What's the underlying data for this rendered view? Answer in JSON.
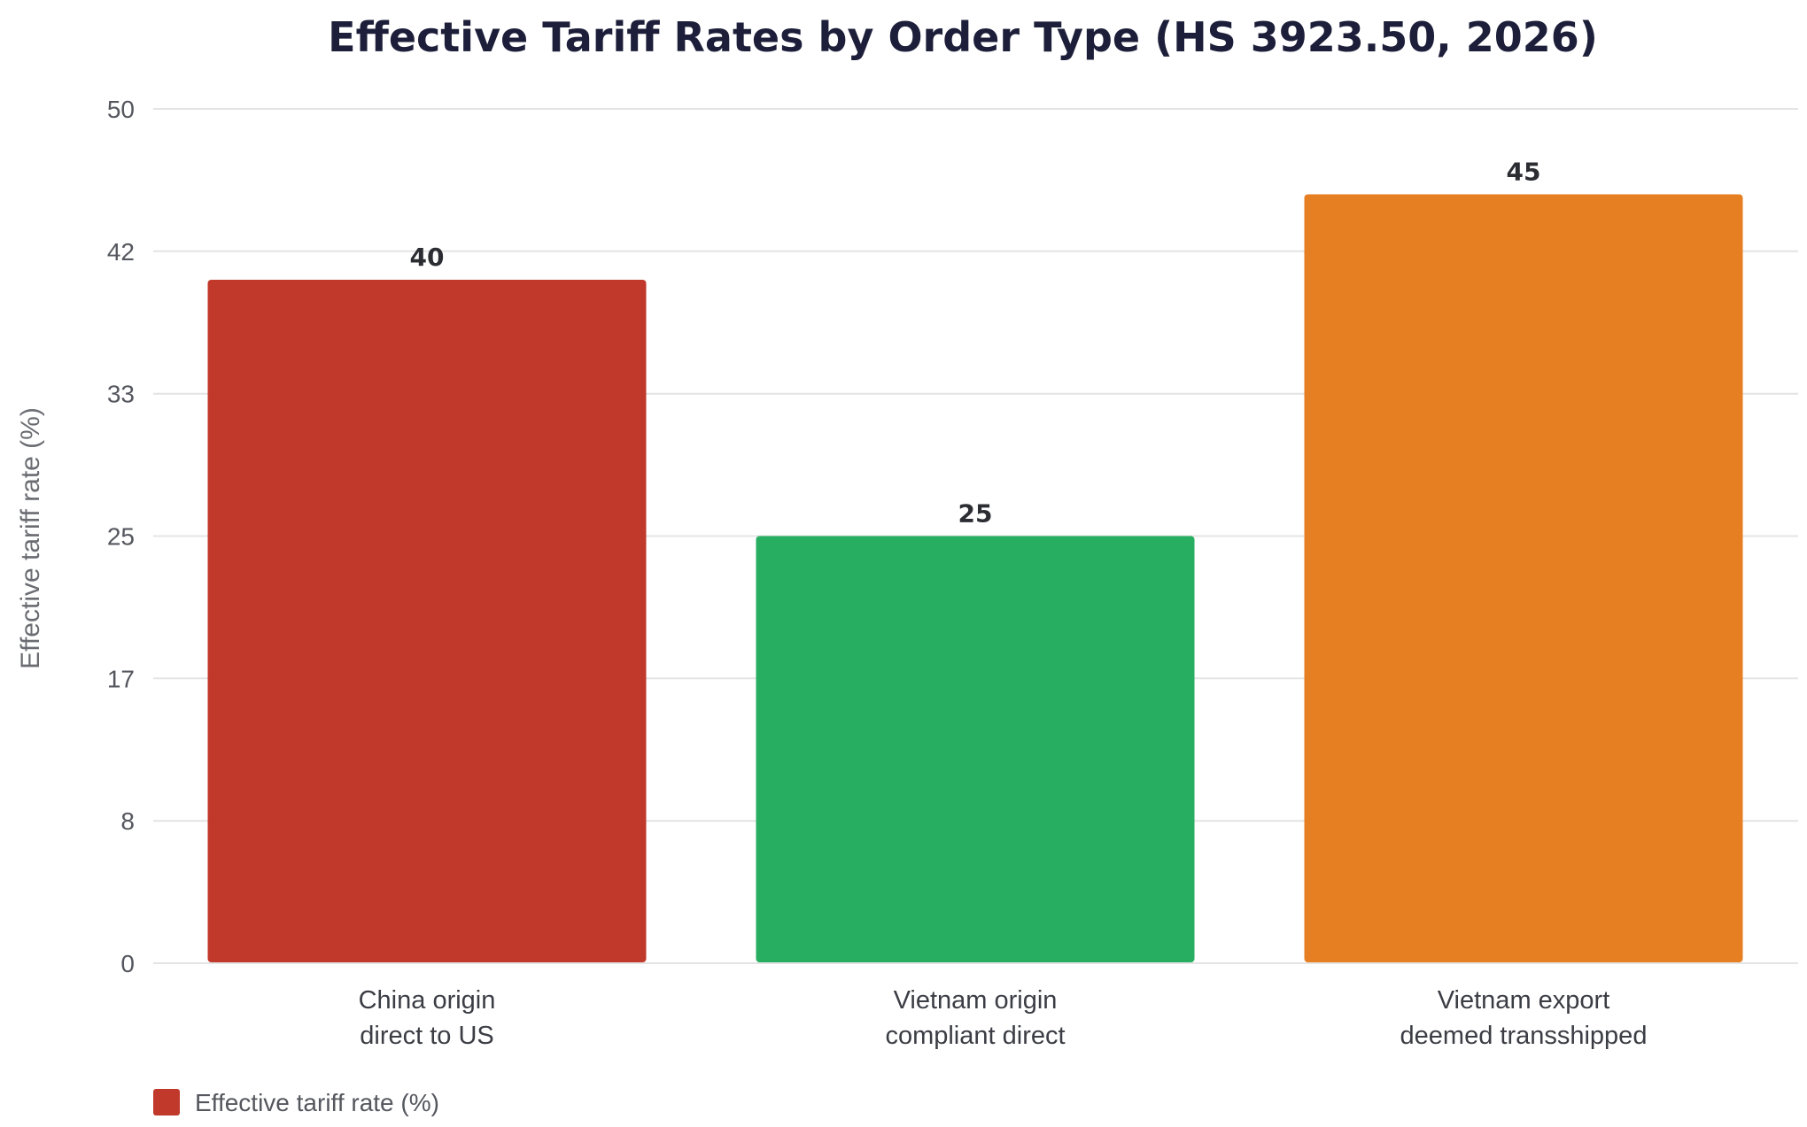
{
  "chart_data": {
    "type": "bar",
    "title": "Effective Tariff Rates by Order Type (HS 3923.50, 2026)",
    "xlabel": "",
    "ylabel": "Effective tariff rate (%)",
    "ylim": [
      0,
      50
    ],
    "yticks": [
      "0",
      "8",
      "17",
      "25",
      "33",
      "42",
      "50"
    ],
    "yticks_values": [
      0,
      8.33,
      16.67,
      25,
      33.33,
      41.67,
      50
    ],
    "categories": [
      [
        "China origin",
        "direct to US"
      ],
      [
        "Vietnam origin",
        "compliant direct"
      ],
      [
        "Vietnam export",
        "deemed transshipped"
      ]
    ],
    "series": [
      {
        "name": "Effective tariff rate (%)",
        "values": [
          40,
          25,
          45
        ]
      }
    ],
    "data_labels": [
      "40",
      "25",
      "45"
    ],
    "bar_colors": [
      "#c0392b",
      "#27ae60",
      "#e67e22"
    ],
    "grid": true,
    "legend": {
      "position": "bottom-left",
      "label": "Effective tariff rate (%)",
      "color": "#c0392b"
    }
  }
}
